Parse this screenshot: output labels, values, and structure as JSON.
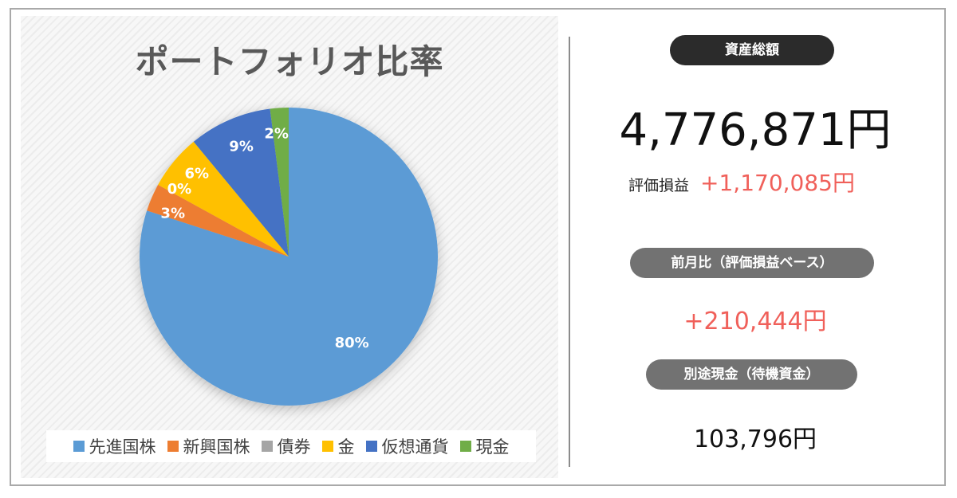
{
  "chart_data": {
    "type": "pie",
    "title": "ポートフォリオ比率",
    "categories": [
      "先進国株",
      "新興国株",
      "債券",
      "金",
      "仮想通貨",
      "現金"
    ],
    "values": [
      80,
      3,
      0,
      6,
      9,
      2
    ],
    "labels": [
      "80%",
      "3%",
      "0%",
      "6%",
      "9%",
      "2%"
    ],
    "colors": [
      "#5b9bd5",
      "#ed7d31",
      "#a5a5a5",
      "#ffc000",
      "#4472c4",
      "#70ad47"
    ],
    "legend": "bottom"
  },
  "summary": {
    "total_label": "資産総額",
    "total_value": "4,776,871円",
    "pl_label": "評価損益",
    "pl_value": "+1,170,085円",
    "monthly_label": "前月比（評価損益ベース）",
    "monthly_value": "+210,444円",
    "cash_label": "別途現金（待機資金）",
    "cash_value": "103,796円"
  }
}
